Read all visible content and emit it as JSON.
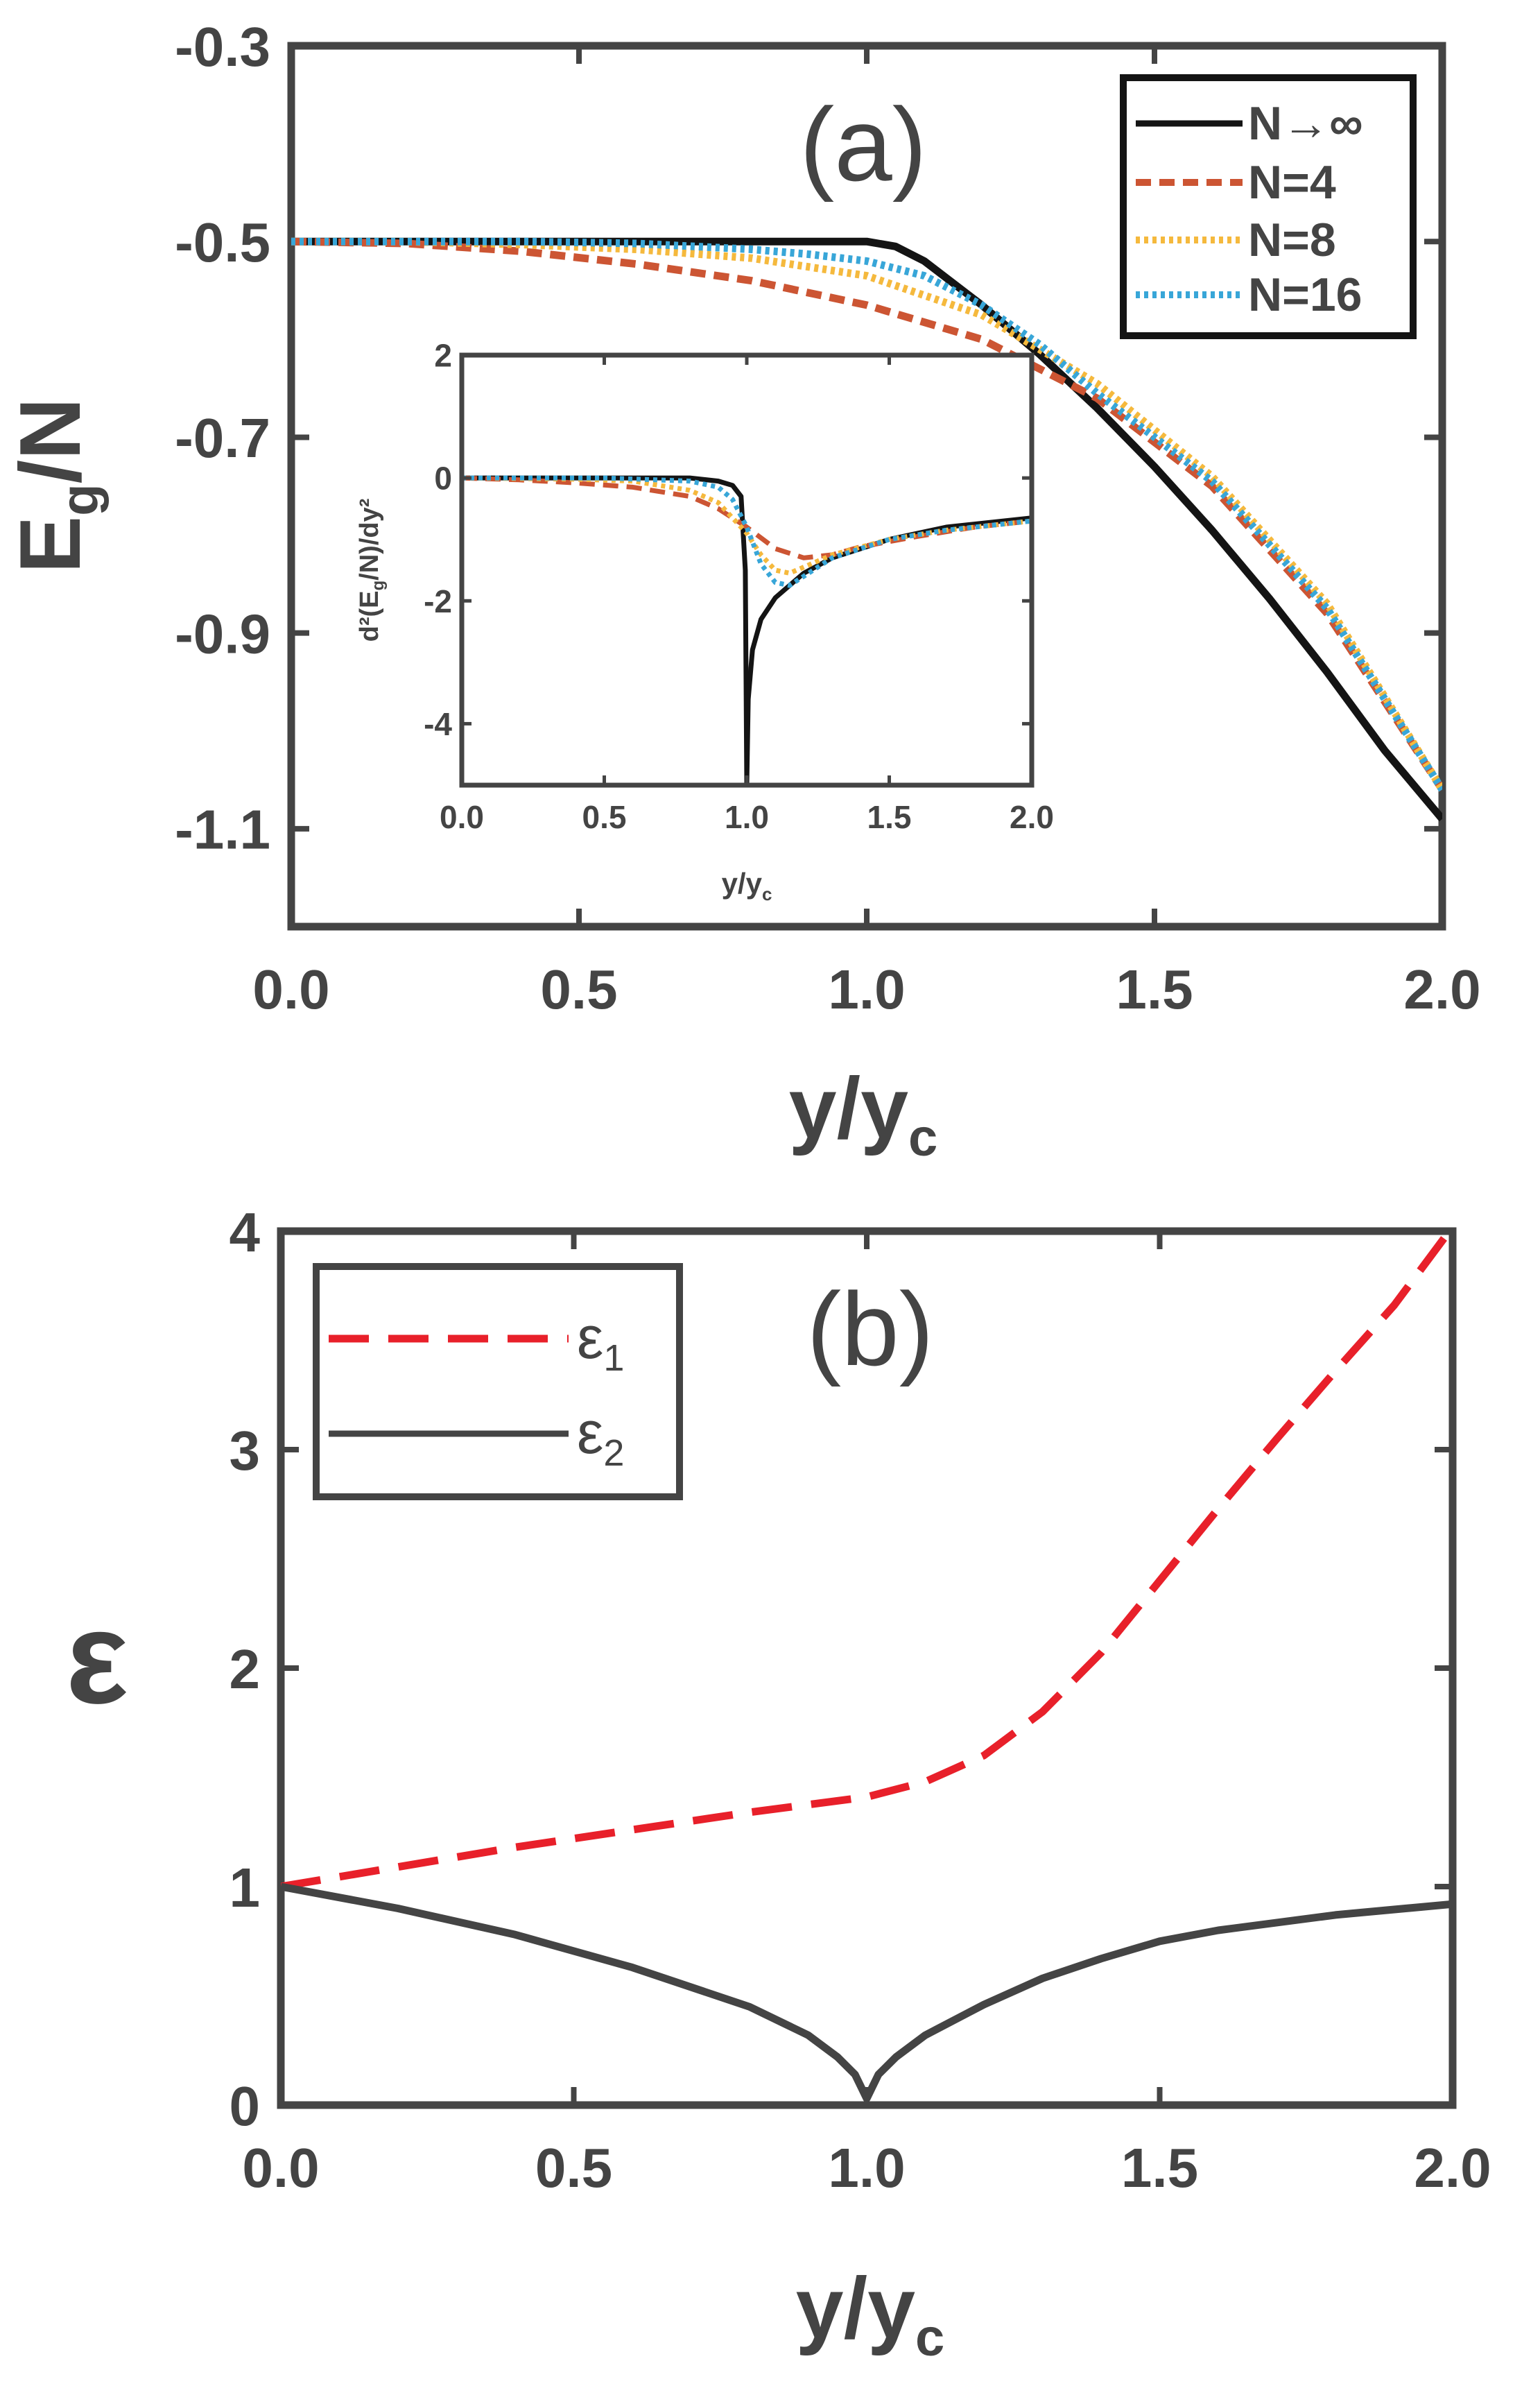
{
  "chart_data": [
    {
      "panel": "(a)",
      "type": "line",
      "xlabel": "y/y",
      "xlabel_sub": "c",
      "ylabel": "E",
      "ylabel_sub": "g",
      "ylabel_tail": "/N",
      "xlim": [
        0,
        2
      ],
      "ylim": [
        -1.2,
        -0.3
      ],
      "xticks": [
        "0.0",
        "0.5",
        "1.0",
        "1.5",
        "2.0"
      ],
      "yticks": [
        "-0.3",
        "-0.5",
        "-0.7",
        "-0.9",
        "-1.1"
      ],
      "legend": {
        "placement": "top-right",
        "entries": [
          "N→∞",
          "N=4",
          "N=8",
          "N=16"
        ]
      },
      "series": [
        {
          "name": "N→∞",
          "color": "#141414",
          "style": "solid",
          "x": [
            0,
            0.2,
            0.4,
            0.6,
            0.8,
            1.0,
            1.05,
            1.1,
            1.2,
            1.3,
            1.4,
            1.5,
            1.6,
            1.7,
            1.8,
            1.9,
            2.0
          ],
          "y": [
            -0.5,
            -0.5,
            -0.5,
            -0.5,
            -0.5,
            -0.5,
            -0.505,
            -0.52,
            -0.565,
            -0.615,
            -0.67,
            -0.73,
            -0.795,
            -0.865,
            -0.94,
            -1.02,
            -1.09
          ]
        },
        {
          "name": "N=4",
          "color": "#cc5533",
          "style": "dashed",
          "x": [
            0,
            0.2,
            0.4,
            0.6,
            0.8,
            1.0,
            1.2,
            1.4,
            1.6,
            1.8,
            2.0
          ],
          "y": [
            -0.5,
            -0.502,
            -0.51,
            -0.523,
            -0.54,
            -0.565,
            -0.6,
            -0.66,
            -0.75,
            -0.88,
            -1.06
          ]
        },
        {
          "name": "N=8",
          "color": "#f5b93d",
          "style": "dotted",
          "x": [
            0,
            0.2,
            0.4,
            0.6,
            0.8,
            1.0,
            1.2,
            1.4,
            1.6,
            1.8,
            2.0
          ],
          "y": [
            -0.5,
            -0.5,
            -0.503,
            -0.508,
            -0.517,
            -0.535,
            -0.575,
            -0.645,
            -0.74,
            -0.87,
            -1.06
          ]
        },
        {
          "name": "N=16",
          "color": "#38a6d8",
          "style": "dotted",
          "x": [
            0,
            0.2,
            0.4,
            0.6,
            0.8,
            0.9,
            1.0,
            1.1,
            1.2,
            1.3,
            1.4,
            1.6,
            1.8,
            2.0
          ],
          "y": [
            -0.5,
            -0.5,
            -0.5,
            -0.502,
            -0.508,
            -0.513,
            -0.52,
            -0.535,
            -0.565,
            -0.605,
            -0.655,
            -0.745,
            -0.875,
            -1.06
          ]
        }
      ],
      "inset": {
        "type": "line",
        "xlabel": "y/y",
        "xlabel_sub": "c",
        "ylabel": "d²(E",
        "ylabel_sub": "g",
        "ylabel_tail": "/N)/dy²",
        "xlim": [
          0,
          2
        ],
        "ylim": [
          -5,
          2
        ],
        "xticks": [
          "0.0",
          "0.5",
          "1.0",
          "1.5",
          "2.0"
        ],
        "yticks": [
          "2",
          "0",
          "-2",
          "-4"
        ],
        "series": [
          {
            "name": "N→∞ (left)",
            "color": "#141414",
            "style": "solid",
            "x": [
              0,
              0.5,
              0.8,
              0.9,
              0.95,
              0.98,
              0.995,
              1.0
            ],
            "y": [
              0,
              0,
              0,
              -0.05,
              -0.12,
              -0.3,
              -1.5,
              -5
            ]
          },
          {
            "name": "N→∞ (right)",
            "color": "#141414",
            "style": "solid",
            "x": [
              1.0,
              1.005,
              1.02,
              1.05,
              1.1,
              1.2,
              1.3,
              1.5,
              1.7,
              2.0
            ],
            "y": [
              -5,
              -3.6,
              -2.8,
              -2.3,
              -1.95,
              -1.55,
              -1.3,
              -1.0,
              -0.8,
              -0.65
            ]
          },
          {
            "name": "N=4",
            "color": "#cc5533",
            "style": "dashed",
            "x": [
              0,
              0.2,
              0.4,
              0.6,
              0.8,
              0.9,
              1.0,
              1.1,
              1.2,
              1.3,
              1.4,
              1.6,
              1.8,
              2.0
            ],
            "y": [
              0,
              -0.03,
              -0.08,
              -0.15,
              -0.3,
              -0.5,
              -0.8,
              -1.15,
              -1.3,
              -1.25,
              -1.12,
              -0.95,
              -0.8,
              -0.7
            ]
          },
          {
            "name": "N=8",
            "color": "#f5b93d",
            "style": "dotted",
            "x": [
              0,
              0.4,
              0.6,
              0.8,
              0.9,
              1.0,
              1.05,
              1.1,
              1.15,
              1.2,
              1.3,
              1.5,
              1.7,
              2.0
            ],
            "y": [
              0,
              -0.02,
              -0.05,
              -0.2,
              -0.4,
              -0.9,
              -1.25,
              -1.5,
              -1.55,
              -1.45,
              -1.25,
              -1.0,
              -0.85,
              -0.7
            ]
          },
          {
            "name": "N=16",
            "color": "#38a6d8",
            "style": "dotted",
            "x": [
              0,
              0.5,
              0.8,
              0.9,
              0.95,
              1.0,
              1.05,
              1.1,
              1.15,
              1.2,
              1.3,
              1.5,
              1.7,
              2.0
            ],
            "y": [
              0,
              0,
              -0.05,
              -0.15,
              -0.35,
              -0.8,
              -1.4,
              -1.7,
              -1.75,
              -1.6,
              -1.3,
              -1.0,
              -0.85,
              -0.7
            ]
          }
        ]
      }
    },
    {
      "panel": "(b)",
      "type": "line",
      "xlabel": "y/y",
      "xlabel_sub": "c",
      "ylabel": "ε",
      "xlim": [
        0,
        2
      ],
      "ylim": [
        0,
        4
      ],
      "xticks": [
        "0.0",
        "0.5",
        "1.0",
        "1.5",
        "2.0"
      ],
      "yticks": [
        "4",
        "3",
        "2",
        "1",
        "0"
      ],
      "legend": {
        "placement": "top-left",
        "entries": [
          {
            "symbol": "ε",
            "sub": "1"
          },
          {
            "symbol": "ε",
            "sub": "2"
          }
        ]
      },
      "series": [
        {
          "name": "ε1",
          "color": "#e8202a",
          "style": "dashed",
          "x": [
            0,
            0.2,
            0.4,
            0.6,
            0.8,
            1.0,
            1.1,
            1.2,
            1.3,
            1.4,
            1.5,
            1.6,
            1.7,
            1.8,
            1.9,
            2.0
          ],
          "y": [
            1.0,
            1.09,
            1.18,
            1.26,
            1.34,
            1.41,
            1.48,
            1.6,
            1.8,
            2.07,
            2.4,
            2.73,
            3.05,
            3.36,
            3.66,
            4.02
          ]
        },
        {
          "name": "ε2",
          "color": "#444444",
          "style": "solid",
          "x": [
            0,
            0.2,
            0.4,
            0.6,
            0.8,
            0.9,
            0.95,
            0.98,
            1.0,
            1.02,
            1.05,
            1.1,
            1.2,
            1.3,
            1.4,
            1.5,
            1.6,
            1.8,
            2.0
          ],
          "y": [
            1.0,
            0.9,
            0.78,
            0.63,
            0.45,
            0.32,
            0.22,
            0.14,
            0.03,
            0.14,
            0.22,
            0.32,
            0.46,
            0.58,
            0.67,
            0.75,
            0.8,
            0.87,
            0.92
          ]
        }
      ]
    }
  ]
}
